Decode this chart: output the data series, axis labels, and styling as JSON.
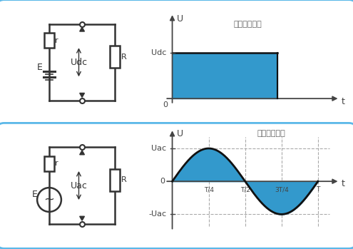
{
  "bg_color": "#cce8f4",
  "panel_border_color": "#5bb8e8",
  "circuit_line_color": "#333333",
  "fill_color": "#3399cc",
  "fill_alpha": 1.0,
  "axis_color": "#444444",
  "text_color": "#555555",
  "grid_color": "#aaaaaa",
  "dc_label": "直流电压波形",
  "ac_label": "交流电压波形",
  "udc_label": "Udc",
  "uac_label": "Uac",
  "neg_uac_label": "-Uac",
  "u_label": "U",
  "t_label": "t",
  "zero_label": "0",
  "time_labels": [
    "T/4",
    "T/2",
    "3T/4",
    "T"
  ],
  "e_label": "E",
  "r_label": "r",
  "R_label": "R",
  "udc_circuit_label": "Udc",
  "uac_circuit_label": "Uac",
  "tilde": "~"
}
